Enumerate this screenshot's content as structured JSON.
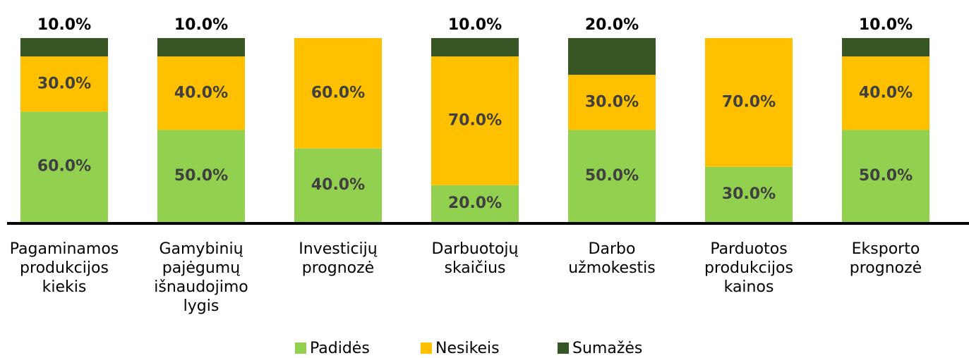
{
  "chart_data": {
    "type": "stacked_bar",
    "categories": [
      "Pagaminamos produkcijos kiekis",
      "Gamybinių pajėgumų išnaudojimo lygis",
      "Investicijų prognozė",
      "Darbuotojų skaičius",
      "Darbo užmokestis",
      "Parduotos produkcijos kainos",
      "Eksporto prognozė"
    ],
    "series": [
      {
        "name": "Padidės",
        "color": "#92d050",
        "values": [
          60,
          50,
          40,
          20,
          50,
          30,
          50
        ],
        "value_labels": [
          "60.0%",
          "50.0%",
          "40.0%",
          "20.0%",
          "50.0%",
          "30.0%",
          "50.0%"
        ]
      },
      {
        "name": "Nesikeis",
        "color": "#ffc000",
        "values": [
          30,
          40,
          60,
          70,
          30,
          70,
          40
        ],
        "value_labels": [
          "30.0%",
          "40.0%",
          "60.0%",
          "70.0%",
          "30.0%",
          "70.0%",
          "40.0%"
        ]
      },
      {
        "name": "Sumažės",
        "color": "#375623",
        "values": [
          10,
          10,
          0,
          10,
          20,
          0,
          10
        ],
        "value_labels": [
          "10.0%",
          "10.0%",
          null,
          "10.0%",
          "20.0%",
          null,
          "10.0%"
        ]
      }
    ],
    "ylim": [
      0,
      100
    ]
  }
}
